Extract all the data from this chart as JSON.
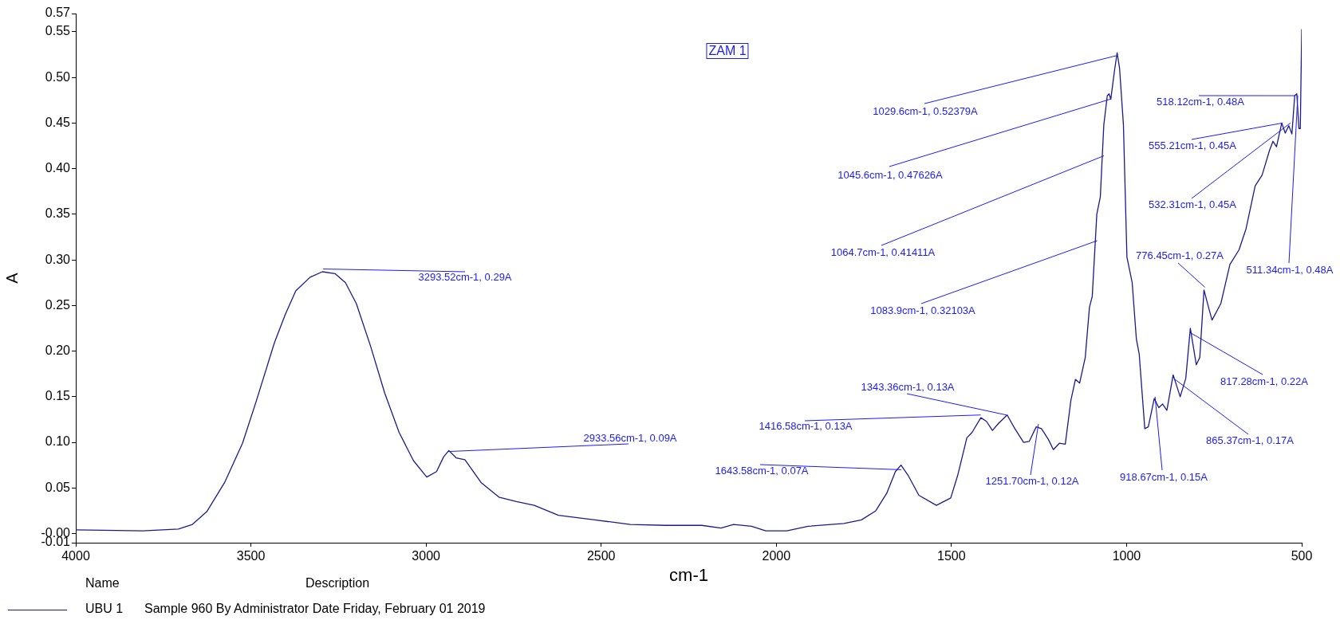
{
  "chart_data": {
    "type": "line",
    "title": "ZAM 1",
    "xlabel": "cm-1",
    "ylabel": "A",
    "xlim": [
      4000,
      500
    ],
    "xticks": [
      4000,
      3500,
      3000,
      2500,
      2000,
      1500,
      1000,
      500
    ],
    "ylim": [
      -0.01,
      0.57
    ],
    "yticks": [
      -0.01,
      {
        "value": 0,
        "label": "-0.00"
      },
      0.05,
      {
        "value": 0.1,
        "label": "0.10"
      },
      0.15,
      {
        "value": 0.2,
        "label": "0.20"
      },
      0.25,
      {
        "value": 0.3,
        "label": "0.30"
      },
      0.35,
      {
        "value": 0.4,
        "label": "0.40"
      },
      0.45,
      {
        "value": 0.5,
        "label": "0.50"
      },
      0.55,
      0.57
    ],
    "grid": false,
    "legend": "bottom",
    "marker": "none",
    "line_style": "solid",
    "series": [
      {
        "name": "UBU 1",
        "color": "#1a1a8c",
        "x": [
          4000,
          3809,
          3707,
          3667,
          3626,
          3575,
          3524,
          3484,
          3433,
          3402,
          3372,
          3331,
          3296,
          3260,
          3230,
          3199,
          3158,
          3118,
          3077,
          3036,
          2998,
          2970,
          2950,
          2935,
          2914,
          2889,
          2843,
          2792,
          2742,
          2691,
          2622,
          2518,
          2417,
          2315,
          2213,
          2158,
          2122,
          2071,
          2030,
          2000,
          1970,
          1909,
          1807,
          1757,
          1716,
          1685,
          1660,
          1644,
          1624,
          1593,
          1543,
          1502,
          1482,
          1456,
          1441,
          1416,
          1400,
          1383,
          1365,
          1341,
          1319,
          1294,
          1278,
          1258,
          1243,
          1223,
          1209,
          1192,
          1175,
          1159,
          1146,
          1134,
          1118,
          1106,
          1098,
          1085,
          1075,
          1065,
          1055,
          1050,
          1045,
          1035,
          1027,
          1020,
          1009,
          999,
          984,
          972,
          964,
          948,
          938,
          921,
          908,
          897,
          885,
          867,
          847,
          831,
          818,
          801,
          791,
          779,
          766,
          756,
          731,
          705,
          679,
          659,
          633,
          613,
          592,
          582,
          572,
          557,
          547,
          537,
          528,
          520,
          514,
          508,
          504,
          500
        ],
        "values": [
          0.004,
          0.003,
          0.005,
          0.01,
          0.024,
          0.056,
          0.099,
          0.146,
          0.209,
          0.24,
          0.266,
          0.281,
          0.287,
          0.285,
          0.275,
          0.252,
          0.205,
          0.154,
          0.111,
          0.08,
          0.062,
          0.068,
          0.084,
          0.091,
          0.083,
          0.081,
          0.056,
          0.04,
          0.035,
          0.031,
          0.02,
          0.015,
          0.01,
          0.009,
          0.009,
          0.006,
          0.01,
          0.008,
          0.003,
          0.003,
          0.003,
          0.008,
          0.011,
          0.015,
          0.025,
          0.044,
          0.068,
          0.075,
          0.064,
          0.042,
          0.031,
          0.039,
          0.064,
          0.105,
          0.111,
          0.127,
          0.123,
          0.113,
          0.121,
          0.13,
          0.115,
          0.1,
          0.101,
          0.117,
          0.115,
          0.103,
          0.092,
          0.099,
          0.098,
          0.146,
          0.169,
          0.165,
          0.193,
          0.248,
          0.26,
          0.35,
          0.369,
          0.448,
          0.48,
          0.482,
          0.476,
          0.506,
          0.527,
          0.51,
          0.448,
          0.303,
          0.275,
          0.213,
          0.197,
          0.115,
          0.117,
          0.148,
          0.138,
          0.142,
          0.135,
          0.174,
          0.15,
          0.17,
          0.225,
          0.185,
          0.193,
          0.267,
          0.248,
          0.234,
          0.252,
          0.295,
          0.311,
          0.334,
          0.381,
          0.393,
          0.42,
          0.43,
          0.424,
          0.45,
          0.439,
          0.447,
          0.438,
          0.48,
          0.482,
          0.444,
          0.444,
          0.553
        ]
      }
    ],
    "annotations": [
      {
        "text": "3293.52cm-1, 0.29A",
        "x": 3293.52,
        "y": 0.29
      },
      {
        "text": "2933.56cm-1, 0.09A",
        "x": 2933.56,
        "y": 0.09
      },
      {
        "text": "1643.58cm-1, 0.07A",
        "x": 1643.58,
        "y": 0.07
      },
      {
        "text": "1416.58cm-1, 0.13A",
        "x": 1416.58,
        "y": 0.13
      },
      {
        "text": "1343.36cm-1, 0.13A",
        "x": 1343.36,
        "y": 0.13
      },
      {
        "text": "1251.70cm-1, 0.12A",
        "x": 1251.7,
        "y": 0.12
      },
      {
        "text": "1083.9cm-1, 0.32103A",
        "x": 1083.9,
        "y": 0.32103
      },
      {
        "text": "1064.7cm-1, 0.41411A",
        "x": 1064.7,
        "y": 0.41411
      },
      {
        "text": "1045.6cm-1, 0.47626A",
        "x": 1045.6,
        "y": 0.47626
      },
      {
        "text": "1029.6cm-1, 0.52379A",
        "x": 1029.6,
        "y": 0.52379
      },
      {
        "text": "918.67cm-1, 0.15A",
        "x": 918.67,
        "y": 0.15
      },
      {
        "text": "865.37cm-1, 0.17A",
        "x": 865.37,
        "y": 0.17
      },
      {
        "text": "817.28cm-1, 0.22A",
        "x": 817.28,
        "y": 0.22
      },
      {
        "text": "776.45cm-1, 0.27A",
        "x": 776.45,
        "y": 0.27
      },
      {
        "text": "555.21cm-1, 0.45A",
        "x": 555.21,
        "y": 0.45
      },
      {
        "text": "532.31cm-1, 0.45A",
        "x": 532.31,
        "y": 0.45
      },
      {
        "text": "518.12cm-1, 0.48A",
        "x": 518.12,
        "y": 0.48
      },
      {
        "text": "511.34cm-1, 0.48A",
        "x": 511.34,
        "y": 0.48
      },
      "Name",
      "Description",
      "Sample 960 By Administrator Date Friday, February 01 2019"
    ]
  }
}
